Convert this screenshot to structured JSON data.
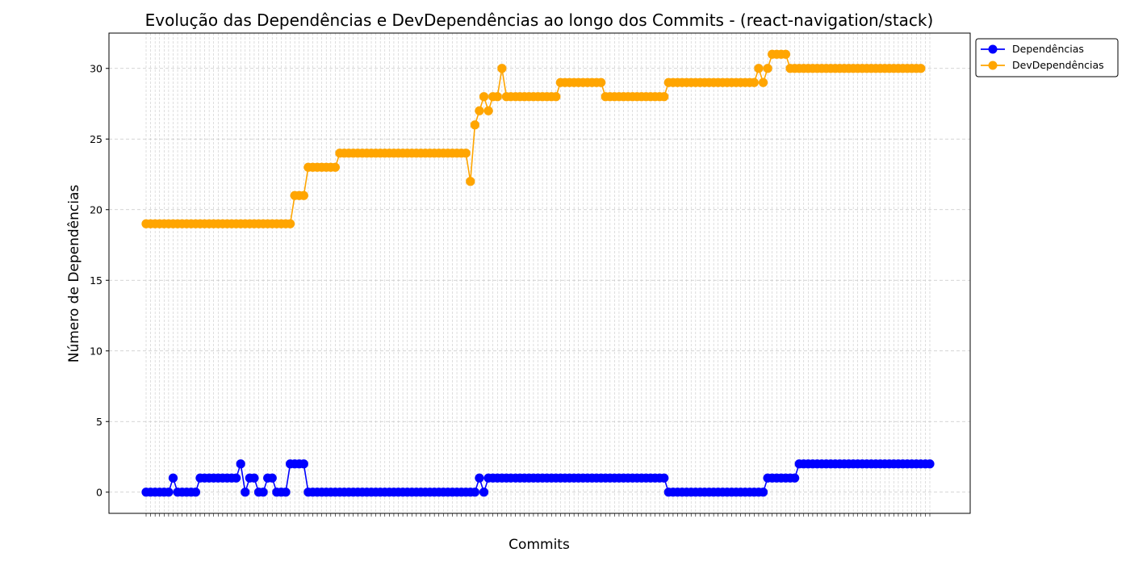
{
  "chart_data": {
    "type": "line",
    "title": "Evolução das Dependências e DevDependências ao longo dos Commits - (react-navigation/stack)",
    "xlabel": "Commits",
    "ylabel": "Número de Dependências",
    "ylim": [
      -1.5,
      32.5
    ],
    "yticks": [
      0,
      5,
      10,
      15,
      20,
      25,
      30
    ],
    "grid": true,
    "legend_position": "outside-top-right",
    "series": [
      {
        "name": "Dependências",
        "color": "#0000ff",
        "values": [
          0,
          0,
          0,
          0,
          0,
          0,
          1,
          0,
          0,
          0,
          0,
          0,
          1,
          1,
          1,
          1,
          1,
          1,
          1,
          1,
          1,
          2,
          0,
          1,
          1,
          0,
          0,
          1,
          1,
          0,
          0,
          0,
          2,
          2,
          2,
          2,
          0,
          0,
          0,
          0,
          0,
          0,
          0,
          0,
          0,
          0,
          0,
          0,
          0,
          0,
          0,
          0,
          0,
          0,
          0,
          0,
          0,
          0,
          0,
          0,
          0,
          0,
          0,
          0,
          0,
          0,
          0,
          0,
          0,
          0,
          0,
          0,
          0,
          0,
          1,
          0,
          1,
          1,
          1,
          1,
          1,
          1,
          1,
          1,
          1,
          1,
          1,
          1,
          1,
          1,
          1,
          1,
          1,
          1,
          1,
          1,
          1,
          1,
          1,
          1,
          1,
          1,
          1,
          1,
          1,
          1,
          1,
          1,
          1,
          1,
          1,
          1,
          1,
          1,
          1,
          1,
          0,
          0,
          0,
          0,
          0,
          0,
          0,
          0,
          0,
          0,
          0,
          0,
          0,
          0,
          0,
          0,
          0,
          0,
          0,
          0,
          0,
          0,
          1,
          1,
          1,
          1,
          1,
          1,
          1,
          2,
          2,
          2,
          2,
          2,
          2,
          2,
          2,
          2,
          2,
          2,
          2,
          2,
          2,
          2,
          2,
          2,
          2,
          2,
          2,
          2,
          2,
          2,
          2,
          2,
          2,
          2,
          2,
          2,
          2
        ]
      },
      {
        "name": "DevDependências",
        "color": "#ffa500",
        "values": [
          19,
          19,
          19,
          19,
          19,
          19,
          19,
          19,
          19,
          19,
          19,
          19,
          19,
          19,
          19,
          19,
          19,
          19,
          19,
          19,
          19,
          19,
          19,
          19,
          19,
          19,
          19,
          19,
          19,
          19,
          19,
          19,
          19,
          21,
          21,
          21,
          23,
          23,
          23,
          23,
          23,
          23,
          23,
          24,
          24,
          24,
          24,
          24,
          24,
          24,
          24,
          24,
          24,
          24,
          24,
          24,
          24,
          24,
          24,
          24,
          24,
          24,
          24,
          24,
          24,
          24,
          24,
          24,
          24,
          24,
          24,
          24,
          22,
          26,
          27,
          28,
          27,
          28,
          28,
          30,
          28,
          28,
          28,
          28,
          28,
          28,
          28,
          28,
          28,
          28,
          28,
          28,
          29,
          29,
          29,
          29,
          29,
          29,
          29,
          29,
          29,
          29,
          28,
          28,
          28,
          28,
          28,
          28,
          28,
          28,
          28,
          28,
          28,
          28,
          28,
          28,
          29,
          29,
          29,
          29,
          29,
          29,
          29,
          29,
          29,
          29,
          29,
          29,
          29,
          29,
          29,
          29,
          29,
          29,
          29,
          29,
          30,
          29,
          30,
          31,
          31,
          31,
          31,
          30,
          30,
          30,
          30,
          30,
          30,
          30,
          30,
          30,
          30,
          30,
          30,
          30,
          30,
          30,
          30,
          30,
          30,
          30,
          30,
          30,
          30,
          30,
          30,
          30,
          30,
          30,
          30,
          30,
          30
        ]
      }
    ]
  }
}
